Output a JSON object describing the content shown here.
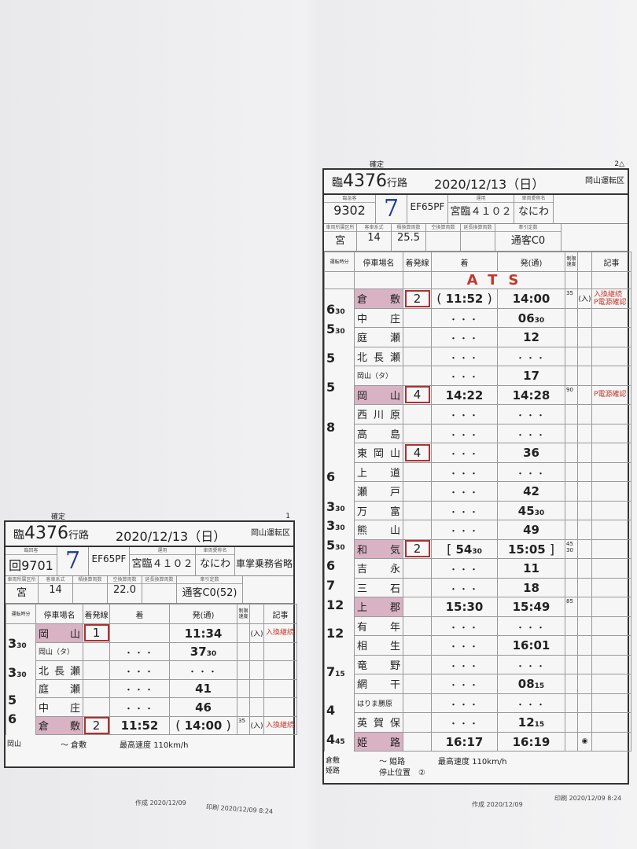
{
  "labels": {
    "kakutei": "確定",
    "gyoro": "行路",
    "depot": "岡山運転区",
    "unyo": "運用",
    "aisho": "車両愛称名",
    "shozoku": "車両所属区所",
    "keishiki": "客車系式",
    "seki": "積換算両数",
    "kara": "空換算両数",
    "encho": "延長換算両数",
    "teisu": "牽引定数",
    "col_run": "運転時分",
    "col_name": "停車場名",
    "col_track": "着発線",
    "col_arr": "着",
    "col_dep": "発(通)",
    "col_speed": "制限速度",
    "col_remark": "記事",
    "max_speed_label": "最高速度",
    "sakusei": "作成",
    "insatsu": "印刷"
  },
  "sheets": [
    {
      "id": "right",
      "page": "2△",
      "prefix": "臨",
      "number": "4376",
      "date": "2020/12/13（日）",
      "type": "臨急客",
      "train_no": "9302",
      "pattern": "7",
      "loco": "EF65PF",
      "unyo": "宮臨４１０２",
      "aisho": "なにわ",
      "extra": "",
      "shozoku": "宮",
      "keishiki": "14",
      "seki": "25.5",
      "kara": "",
      "encho": "",
      "teisu": "通客C0",
      "banner": "ATS",
      "rows": [
        {
          "name": "倉　敷",
          "major": true,
          "track": "2",
          "arr_open": "(",
          "arr": "11:52",
          "arr_close": ")",
          "dep": "14:00",
          "speed": "35",
          "mark": "(入)",
          "remark": "入換継続\nP電源確認"
        },
        {
          "name": "中　庄",
          "dep": "06",
          "dep_sub": "30"
        },
        {
          "name": "庭　瀬",
          "dep": "12"
        },
        {
          "name": "北長瀬",
          "dep": "・・・"
        },
        {
          "name": "岡山（タ）",
          "small": true,
          "dep": "17"
        },
        {
          "name": "岡　山",
          "major": true,
          "track": "4",
          "arr": "14:22",
          "dep": "14:28",
          "speed": "90",
          "remark": "P電源確認"
        },
        {
          "name": "西川原",
          "dep": "・・・"
        },
        {
          "name": "高　島",
          "dep": "・・・"
        },
        {
          "name": "東岡山",
          "track": "4",
          "dep": "36"
        },
        {
          "name": "上　道",
          "dep": "・・・"
        },
        {
          "name": "瀬　戸",
          "dep": "42"
        },
        {
          "name": "万　富",
          "dep": "45",
          "dep_sub": "30"
        },
        {
          "name": "熊　山",
          "dep": "49"
        },
        {
          "name": "和　気",
          "major": true,
          "track": "2",
          "arr_open": "[",
          "arr": "54",
          "arr_sub": "30",
          "dep": "15:05",
          "dep_close": "]",
          "speed": "45\n30"
        },
        {
          "name": "吉　永",
          "dep": "11"
        },
        {
          "name": "三　石",
          "dep": "18"
        },
        {
          "name": "上　郡",
          "major": true,
          "arr": "15:30",
          "dep": "15:49",
          "speed": "85"
        },
        {
          "name": "有　年",
          "dep": "・・・"
        },
        {
          "name": "相　生",
          "dep": "16:01"
        },
        {
          "name": "竜　野",
          "dep": "・・・"
        },
        {
          "name": "網　干",
          "dep": "08",
          "dep_sub": "15"
        },
        {
          "name": "はりま勝原",
          "small": true,
          "dep": "・・・"
        },
        {
          "name": "英賀保",
          "dep": "12",
          "dep_sub": "15"
        },
        {
          "name": "姫　路",
          "major": true,
          "arr": "16:17",
          "dep": "16:19",
          "mark": "◉"
        }
      ],
      "runs": [
        {
          "min": "6",
          "sec": "30",
          "from": 0,
          "to": 1
        },
        {
          "min": "5",
          "sec": "30",
          "from": 1,
          "to": 2
        },
        {
          "min": "5",
          "sec": "",
          "from": 2,
          "to": 4
        },
        {
          "min": "5",
          "sec": "",
          "from": 4,
          "to": 5
        },
        {
          "min": "8",
          "sec": "",
          "from": 5,
          "to": 8
        },
        {
          "min": "6",
          "sec": "",
          "from": 8,
          "to": 10
        },
        {
          "min": "3",
          "sec": "30",
          "from": 10,
          "to": 11
        },
        {
          "min": "3",
          "sec": "30",
          "from": 11,
          "to": 12
        },
        {
          "min": "5",
          "sec": "30",
          "from": 12,
          "to": 13
        },
        {
          "min": "6",
          "sec": "",
          "from": 13,
          "to": 14
        },
        {
          "min": "7",
          "sec": "",
          "from": 14,
          "to": 15
        },
        {
          "min": "12",
          "sec": "",
          "from": 15,
          "to": 16
        },
        {
          "min": "12",
          "sec": "",
          "from": 16,
          "to": 18
        },
        {
          "min": "7",
          "sec": "15",
          "from": 18,
          "to": 20
        },
        {
          "min": "4",
          "sec": "",
          "from": 20,
          "to": 22
        },
        {
          "min": "4",
          "sec": "45",
          "from": 22,
          "to": 23
        }
      ],
      "footer": {
        "from": "倉敷\n姫路",
        "route": "～ 姫路",
        "max_speed": "110km/h",
        "stop_pos": "停止位置　②"
      },
      "sakusei_date": "2020/12/09",
      "insatsu_date": "2020/12/09 8:24"
    },
    {
      "id": "left",
      "page": "1",
      "prefix": "臨",
      "number": "4376",
      "date": "2020/12/13（日）",
      "type": "臨回客",
      "train_no": "回9701",
      "pattern": "7",
      "loco": "EF65PF",
      "unyo": "宮臨４１０２",
      "aisho": "なにわ",
      "extra": "車掌乗務省略",
      "shozoku": "宮",
      "keishiki": "14",
      "seki": "",
      "kara": "22.0",
      "encho": "",
      "teisu": "通客C0(52)",
      "banner": "",
      "rows": [
        {
          "name": "岡　山",
          "major": true,
          "track": "1",
          "dep": "11:34",
          "mark": "(入)",
          "remark": "入換継続"
        },
        {
          "name": "岡山（タ）",
          "small": true,
          "dep": "37",
          "dep_sub": "30"
        },
        {
          "name": "北長瀬",
          "dep": "・・・"
        },
        {
          "name": "庭　瀬",
          "dep": "41"
        },
        {
          "name": "中　庄",
          "dep": "46"
        },
        {
          "name": "倉　敷",
          "major": true,
          "track": "2",
          "arr": "11:52",
          "dep_open": "(",
          "dep": "14:00",
          "dep_close": ")",
          "speed": "35",
          "mark": "(入)",
          "remark": "入換継続"
        }
      ],
      "runs": [
        {
          "min": "3",
          "sec": "30",
          "from": 0,
          "to": 1
        },
        {
          "min": "3",
          "sec": "30",
          "from": 1,
          "to": 3
        },
        {
          "min": "5",
          "sec": "",
          "from": 3,
          "to": 4
        },
        {
          "min": "6",
          "sec": "",
          "from": 4,
          "to": 5
        }
      ],
      "footer": {
        "from": "岡山",
        "route": "～ 倉敷",
        "max_speed": "110km/h",
        "stop_pos": ""
      },
      "sakusei_date": "2020/12/09",
      "insatsu_date": "2020/12/09 8:24"
    }
  ],
  "colors": {
    "major_station": "#d9b3c4",
    "remark_red": "#c0392b",
    "pattern_blue": "#1a3a8f",
    "track_box": "#b03030"
  }
}
